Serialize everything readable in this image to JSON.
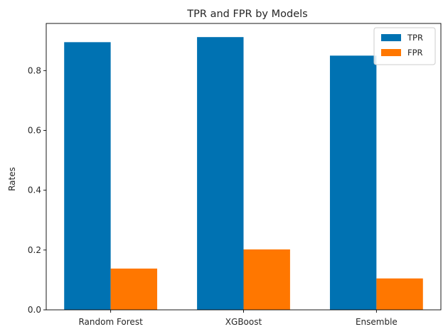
{
  "chart_data": {
    "type": "bar",
    "title": "TPR and FPR by Models",
    "xlabel": "",
    "ylabel": "Rates",
    "categories": [
      "Random Forest",
      "XGBoost",
      "Ensemble"
    ],
    "series": [
      {
        "name": "TPR",
        "values": [
          0.895,
          0.912,
          0.85
        ],
        "color": "#0072b2"
      },
      {
        "name": "FPR",
        "values": [
          0.138,
          0.202,
          0.105
        ],
        "color": "#ff7700"
      }
    ],
    "ylim": [
      0,
      0.9576
    ],
    "yticks": [
      0.0,
      0.2,
      0.4,
      0.6,
      0.8
    ],
    "ytick_labels": [
      "0.0",
      "0.2",
      "0.4",
      "0.6",
      "0.8"
    ],
    "grid": false,
    "legend_position": "top-right"
  }
}
